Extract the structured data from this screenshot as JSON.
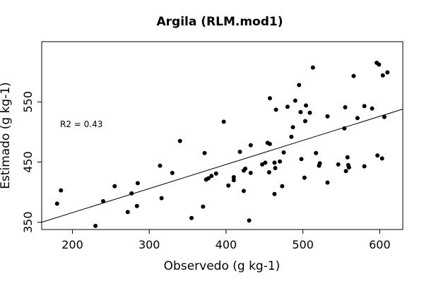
{
  "chart_data": {
    "type": "scatter",
    "title": "Argila (RLM.mod1)",
    "xlabel": "Observedo (g kg-1)",
    "ylabel": "Estimado (g kg-1)",
    "annotation": "R2 = 0.43",
    "xlim": [
      160,
      630
    ],
    "ylim": [
      338,
      650
    ],
    "xticks": [
      200,
      300,
      400,
      500,
      600
    ],
    "yticks": [
      350,
      450,
      550
    ],
    "grid": false,
    "legend": "none",
    "point_color": "#000000",
    "fit_line": {
      "x": [
        160,
        630
      ],
      "y": [
        350,
        538
      ]
    },
    "points": [
      {
        "x": 180,
        "y": 381
      },
      {
        "x": 185,
        "y": 403
      },
      {
        "x": 230,
        "y": 344
      },
      {
        "x": 240,
        "y": 385
      },
      {
        "x": 255,
        "y": 410
      },
      {
        "x": 272,
        "y": 367
      },
      {
        "x": 277,
        "y": 398
      },
      {
        "x": 284,
        "y": 377
      },
      {
        "x": 285,
        "y": 415
      },
      {
        "x": 314,
        "y": 444
      },
      {
        "x": 316,
        "y": 390
      },
      {
        "x": 330,
        "y": 432
      },
      {
        "x": 340,
        "y": 485
      },
      {
        "x": 355,
        "y": 357
      },
      {
        "x": 370,
        "y": 376
      },
      {
        "x": 372,
        "y": 465
      },
      {
        "x": 374,
        "y": 421
      },
      {
        "x": 377,
        "y": 423
      },
      {
        "x": 381,
        "y": 427
      },
      {
        "x": 387,
        "y": 431
      },
      {
        "x": 397,
        "y": 517
      },
      {
        "x": 403,
        "y": 411
      },
      {
        "x": 410,
        "y": 420
      },
      {
        "x": 410,
        "y": 425
      },
      {
        "x": 418,
        "y": 467
      },
      {
        "x": 423,
        "y": 436
      },
      {
        "x": 423,
        "y": 402
      },
      {
        "x": 425,
        "y": 439
      },
      {
        "x": 430,
        "y": 353
      },
      {
        "x": 432,
        "y": 478
      },
      {
        "x": 432,
        "y": 432
      },
      {
        "x": 447,
        "y": 446
      },
      {
        "x": 451,
        "y": 449
      },
      {
        "x": 454,
        "y": 482
      },
      {
        "x": 456,
        "y": 433
      },
      {
        "x": 457,
        "y": 480
      },
      {
        "x": 457,
        "y": 556
      },
      {
        "x": 463,
        "y": 449
      },
      {
        "x": 463,
        "y": 397
      },
      {
        "x": 464,
        "y": 440
      },
      {
        "x": 465,
        "y": 537
      },
      {
        "x": 470,
        "y": 451
      },
      {
        "x": 473,
        "y": 410
      },
      {
        "x": 475,
        "y": 466
      },
      {
        "x": 480,
        "y": 542
      },
      {
        "x": 485,
        "y": 492
      },
      {
        "x": 487,
        "y": 508
      },
      {
        "x": 490,
        "y": 552
      },
      {
        "x": 495,
        "y": 578
      },
      {
        "x": 497,
        "y": 533
      },
      {
        "x": 498,
        "y": 455
      },
      {
        "x": 502,
        "y": 424
      },
      {
        "x": 503,
        "y": 518
      },
      {
        "x": 504,
        "y": 544
      },
      {
        "x": 509,
        "y": 532
      },
      {
        "x": 513,
        "y": 607
      },
      {
        "x": 517,
        "y": 465
      },
      {
        "x": 521,
        "y": 444
      },
      {
        "x": 522,
        "y": 448
      },
      {
        "x": 532,
        "y": 416
      },
      {
        "x": 532,
        "y": 526
      },
      {
        "x": 546,
        "y": 446
      },
      {
        "x": 554,
        "y": 506
      },
      {
        "x": 555,
        "y": 541
      },
      {
        "x": 556,
        "y": 435
      },
      {
        "x": 558,
        "y": 458
      },
      {
        "x": 559,
        "y": 445
      },
      {
        "x": 560,
        "y": 441
      },
      {
        "x": 566,
        "y": 593
      },
      {
        "x": 571,
        "y": 523
      },
      {
        "x": 580,
        "y": 543
      },
      {
        "x": 580,
        "y": 443
      },
      {
        "x": 590,
        "y": 539
      },
      {
        "x": 596,
        "y": 615
      },
      {
        "x": 597,
        "y": 461
      },
      {
        "x": 599,
        "y": 612
      },
      {
        "x": 603,
        "y": 456
      },
      {
        "x": 604,
        "y": 594
      },
      {
        "x": 606,
        "y": 525
      },
      {
        "x": 610,
        "y": 599
      }
    ]
  }
}
